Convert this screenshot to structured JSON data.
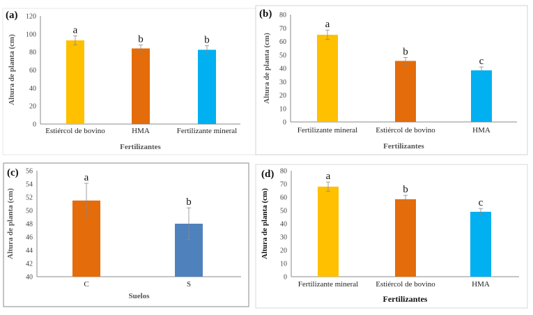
{
  "chart_data": [
    {
      "type": "bar",
      "panel_label": "(a)",
      "categories": [
        "Estiércol de bovino",
        "HMA",
        "Fertilizante mineral"
      ],
      "values": [
        93,
        84,
        82.5
      ],
      "errors": [
        5,
        4,
        4.5
      ],
      "significance": [
        "a",
        "b",
        "b"
      ],
      "colors": [
        "#FFC000",
        "#E46C0A",
        "#00B0F0"
      ],
      "xlabel": "Fertilizantes",
      "ylabel": "Altura de planta (cm)",
      "ylim": [
        0,
        120
      ],
      "yticks": [
        0,
        20,
        40,
        60,
        80,
        100,
        120
      ]
    },
    {
      "type": "bar",
      "panel_label": "(b)",
      "categories": [
        "Fertilizante mineral",
        "Estiércol de bovino",
        "HMA"
      ],
      "values": [
        65,
        45.5,
        38.5
      ],
      "errors": [
        3.5,
        2.5,
        2.5
      ],
      "significance": [
        "a",
        "b",
        "c"
      ],
      "colors": [
        "#FFC000",
        "#E46C0A",
        "#00B0F0"
      ],
      "xlabel": "Fertilizantes",
      "ylabel": "Altura de planta (cm)",
      "ylim": [
        0,
        80
      ],
      "yticks": [
        0,
        10,
        20,
        30,
        40,
        50,
        60,
        70,
        80
      ]
    },
    {
      "type": "bar",
      "panel_label": "(c)",
      "categories": [
        "C",
        "S"
      ],
      "values": [
        51.5,
        48
      ],
      "errors": [
        2.6,
        2.4
      ],
      "significance": [
        "a",
        "b"
      ],
      "colors": [
        "#E46C0A",
        "#4F81BD"
      ],
      "xlabel": "Suelos",
      "ylabel": "Altura de planta (cm)",
      "ylim": [
        40,
        56
      ],
      "yticks": [
        40,
        42,
        44,
        46,
        48,
        50,
        52,
        54,
        56
      ]
    },
    {
      "type": "bar",
      "panel_label": "(d)",
      "categories": [
        "Fertilizante mineral",
        "Estiércol de bovino",
        "HMA"
      ],
      "values": [
        68,
        58.5,
        49
      ],
      "errors": [
        3.5,
        3,
        2.5
      ],
      "significance": [
        "a",
        "b",
        "c"
      ],
      "colors": [
        "#FFC000",
        "#E46C0A",
        "#00B0F0"
      ],
      "xlabel": "Fertilizantes",
      "ylabel": "Altura de planta (cm)",
      "ylim": [
        0,
        80
      ],
      "yticks": [
        0,
        10,
        20,
        30,
        40,
        50,
        60,
        70,
        80
      ]
    }
  ]
}
